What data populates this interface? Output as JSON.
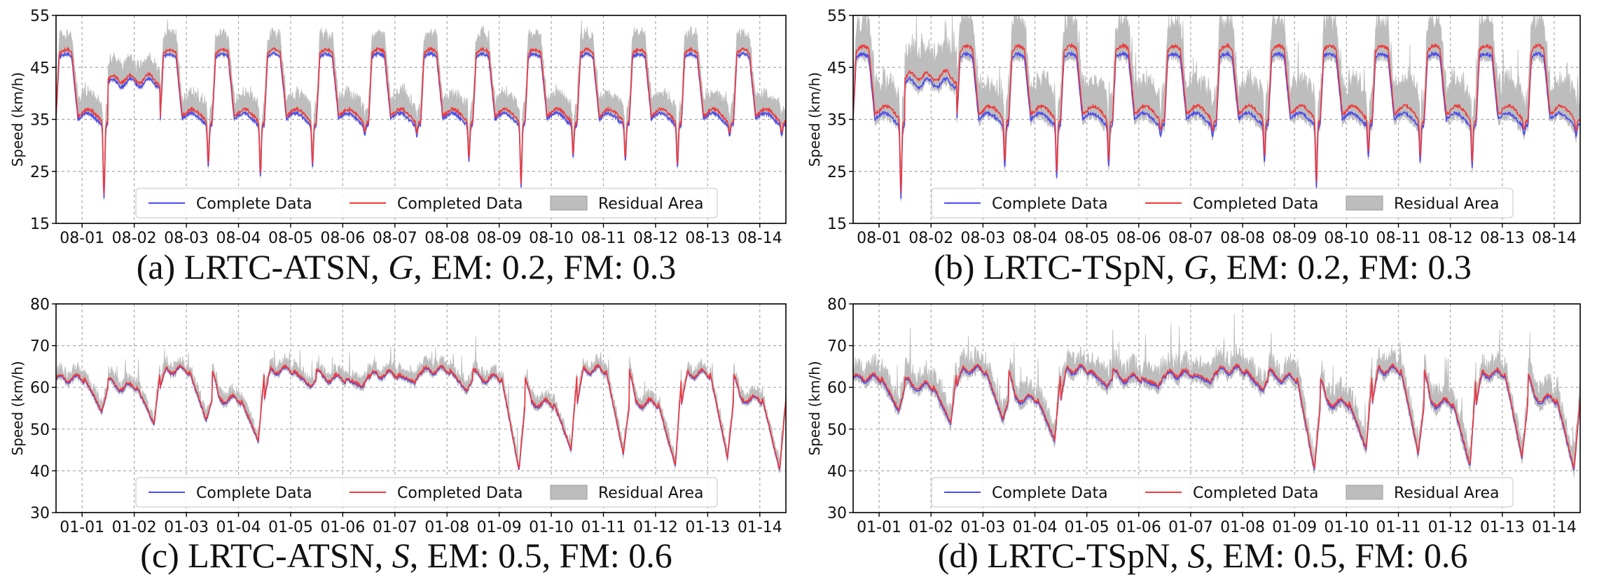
{
  "colors": {
    "complete": "#4b4bf0",
    "completed": "#f03a3a",
    "residual": "#bdbdbd",
    "grid": "#a8a8a8"
  },
  "legend_position": "lower center",
  "chart_data": [
    {
      "id": "a",
      "type": "line",
      "caption": {
        "prefix": "(a) LRTC-ATSN, ",
        "symbol": "G",
        "suffix": ", EM: 0.2, FM: 0.3"
      },
      "ylabel": "Speed (km/h)",
      "ylim": [
        15,
        55
      ],
      "yticks": [
        15,
        25,
        35,
        45,
        55
      ],
      "xlim": [
        0,
        14
      ],
      "xticks": [
        0.5,
        1.5,
        2.5,
        3.5,
        4.5,
        5.5,
        6.5,
        7.5,
        8.5,
        9.5,
        10.5,
        11.5,
        12.5,
        13.5
      ],
      "xtick_labels": [
        "08-01",
        "08-02",
        "08-03",
        "08-04",
        "08-05",
        "08-06",
        "08-07",
        "08-08",
        "08-09",
        "08-10",
        "08-11",
        "08-12",
        "08-13",
        "08-14"
      ],
      "grid": true,
      "legend": [
        "Complete Data",
        "Completed Data",
        "Residual Area"
      ],
      "profile": "peak",
      "base": 35,
      "day_peaks": [
        47,
        43,
        47,
        47,
        47,
        47,
        47,
        47,
        47,
        47,
        47,
        47,
        47,
        47
      ],
      "day_dips": [
        21,
        42,
        27,
        25,
        27,
        33,
        33,
        28,
        23,
        29,
        28,
        27,
        33,
        33
      ],
      "completed_offset": 0.9,
      "residual_band": 3.5,
      "residual_noise": 1.2,
      "seed": 11
    },
    {
      "id": "b",
      "type": "line",
      "caption": {
        "prefix": "(b) LRTC-TSpN, ",
        "symbol": "G",
        "suffix": ", EM: 0.2, FM: 0.3"
      },
      "ylabel": "Speed (km/h)",
      "ylim": [
        15,
        55
      ],
      "yticks": [
        15,
        25,
        35,
        45,
        55
      ],
      "xlim": [
        0,
        14
      ],
      "xticks": [
        0.5,
        1.5,
        2.5,
        3.5,
        4.5,
        5.5,
        6.5,
        7.5,
        8.5,
        9.5,
        10.5,
        11.5,
        12.5,
        13.5
      ],
      "xtick_labels": [
        "08-01",
        "08-02",
        "08-03",
        "08-04",
        "08-05",
        "08-06",
        "08-07",
        "08-08",
        "08-09",
        "08-10",
        "08-11",
        "08-12",
        "08-13",
        "08-14"
      ],
      "grid": true,
      "legend": [
        "Complete Data",
        "Completed Data",
        "Residual Area"
      ],
      "profile": "peak",
      "base": 35,
      "day_peaks": [
        47,
        43,
        47,
        47,
        47,
        47,
        47,
        47,
        47,
        47,
        47,
        47,
        47,
        47
      ],
      "day_dips": [
        21,
        42,
        27,
        25,
        27,
        33,
        33,
        28,
        23,
        29,
        28,
        27,
        33,
        33
      ],
      "completed_offset": 1.6,
      "residual_band": 4.5,
      "residual_noise": 3.5,
      "seed": 23
    },
    {
      "id": "c",
      "type": "line",
      "caption": {
        "prefix": "(c) LRTC-ATSN, ",
        "symbol": "S",
        "suffix": ", EM: 0.5, FM: 0.6"
      },
      "ylabel": "Speed (km/h)",
      "ylim": [
        30,
        80
      ],
      "yticks": [
        30,
        40,
        50,
        60,
        70,
        80
      ],
      "xlim": [
        0,
        14
      ],
      "xticks": [
        0.5,
        1.5,
        2.5,
        3.5,
        4.5,
        5.5,
        6.5,
        7.5,
        8.5,
        9.5,
        10.5,
        11.5,
        12.5,
        13.5
      ],
      "xtick_labels": [
        "01-01",
        "01-02",
        "01-03",
        "01-04",
        "01-05",
        "01-06",
        "01-07",
        "01-08",
        "01-09",
        "01-10",
        "01-11",
        "01-12",
        "01-13",
        "01-14"
      ],
      "grid": true,
      "legend": [
        "Complete Data",
        "Completed Data",
        "Residual Area"
      ],
      "profile": "plateau",
      "day_highs": [
        62,
        60,
        64,
        57,
        64,
        62,
        63,
        64,
        62,
        56,
        64,
        56,
        63,
        57
      ],
      "day_dips": [
        54,
        51,
        52,
        47,
        60,
        60,
        61,
        59,
        40,
        45,
        44,
        41,
        43,
        40
      ],
      "completed_offset": 0.3,
      "residual_band": 0.5,
      "residual_noise": 2.5,
      "seed": 37
    },
    {
      "id": "d",
      "type": "line",
      "caption": {
        "prefix": "(d) LRTC-TSpN, ",
        "symbol": "S",
        "suffix": ", EM: 0.5, FM: 0.6"
      },
      "ylabel": "Speed (km/h)",
      "ylim": [
        30,
        80
      ],
      "yticks": [
        30,
        40,
        50,
        60,
        70,
        80
      ],
      "xlim": [
        0,
        14
      ],
      "xticks": [
        0.5,
        1.5,
        2.5,
        3.5,
        4.5,
        5.5,
        6.5,
        7.5,
        8.5,
        9.5,
        10.5,
        11.5,
        12.5,
        13.5
      ],
      "xtick_labels": [
        "01-01",
        "01-02",
        "01-03",
        "01-04",
        "01-05",
        "01-06",
        "01-07",
        "01-08",
        "01-09",
        "01-10",
        "01-11",
        "01-12",
        "01-13",
        "01-14"
      ],
      "grid": true,
      "legend": [
        "Complete Data",
        "Completed Data",
        "Residual Area"
      ],
      "profile": "plateau",
      "day_highs": [
        62,
        60,
        64,
        57,
        64,
        62,
        63,
        64,
        62,
        56,
        64,
        56,
        63,
        57
      ],
      "day_dips": [
        54,
        51,
        52,
        47,
        60,
        60,
        61,
        59,
        40,
        45,
        44,
        41,
        43,
        40
      ],
      "completed_offset": 0.5,
      "residual_band": 0.8,
      "residual_noise": 4.5,
      "seed": 53
    }
  ]
}
